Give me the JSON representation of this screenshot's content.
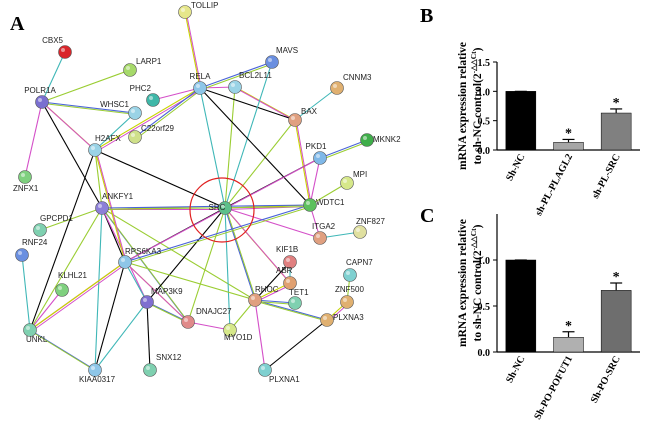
{
  "network": {
    "panel": "A",
    "nodes": [
      {
        "label": "CBX5",
        "color": "#d9262b"
      },
      {
        "label": "LARP1",
        "color": "#a6d96a"
      },
      {
        "label": "TOLLIP",
        "color": "#e6e68a"
      },
      {
        "label": "PHC2",
        "color": "#3fb7a8"
      },
      {
        "label": "WHSC1",
        "color": "#9ad3e6"
      },
      {
        "label": "POLR1A",
        "color": "#7a6fd0"
      },
      {
        "label": "C22orf29",
        "color": "#cfe08a"
      },
      {
        "label": "RELA",
        "color": "#8ec6e8"
      },
      {
        "label": "BCL2L11",
        "color": "#9ad3e6"
      },
      {
        "label": "MAVS",
        "color": "#6a8fe0"
      },
      {
        "label": "CNNM3",
        "color": "#e0b070"
      },
      {
        "label": "BAX",
        "color": "#e0a080"
      },
      {
        "label": "MKNK2",
        "color": "#3fae4a"
      },
      {
        "label": "H2AFX",
        "color": "#9ad3e6"
      },
      {
        "label": "ZNFX1",
        "color": "#7fd07f"
      },
      {
        "label": "PKD1",
        "color": "#7fb8e8"
      },
      {
        "label": "MPI",
        "color": "#d6e88a"
      },
      {
        "label": "ANKFY1",
        "color": "#8c7fd8"
      },
      {
        "label": "SRC",
        "color": "#5cc08a"
      },
      {
        "label": "WDTC1",
        "color": "#5cc05c"
      },
      {
        "label": "GPCPD1",
        "color": "#7fd0b0"
      },
      {
        "label": "ITGA2",
        "color": "#e0a080"
      },
      {
        "label": "ZNF827",
        "color": "#e0e0a0"
      },
      {
        "label": "RNF24",
        "color": "#6a8fe0"
      },
      {
        "label": "RPS6KA3",
        "color": "#8ec6e8"
      },
      {
        "label": "KIF1B",
        "color": "#e08080"
      },
      {
        "label": "ABR",
        "color": "#e0a070"
      },
      {
        "label": "CAPN7",
        "color": "#7fd0d0"
      },
      {
        "label": "KLHL21",
        "color": "#7fd07f"
      },
      {
        "label": "MAP3K9",
        "color": "#7f6fd0"
      },
      {
        "label": "RHOC",
        "color": "#e0a080"
      },
      {
        "label": "TET1",
        "color": "#7fd0b0"
      },
      {
        "label": "ZNF500",
        "color": "#e0b070"
      },
      {
        "label": "DNAJC27",
        "color": "#e08a8a"
      },
      {
        "label": "MYO1D",
        "color": "#d6e88a"
      },
      {
        "label": "PLXNA3",
        "color": "#e0b070"
      },
      {
        "label": "UNKL",
        "color": "#7fd0b0"
      },
      {
        "label": "KIAA0317",
        "color": "#8ec6e8"
      },
      {
        "label": "SNX12",
        "color": "#7fd0b0"
      },
      {
        "label": "PLXNA1",
        "color": "#7fd0d0"
      }
    ]
  },
  "chart_data": [
    {
      "type": "bar",
      "panel": "B",
      "y_label": [
        "mRNA expression relative",
        "to sh-NC control(2"
      ],
      "y_label_exponent": "-△△Ct",
      "y_label_end": ")",
      "categories": [
        "Sh-NC",
        "sh-PL-PLAGL2",
        "sh-PL-SRC"
      ],
      "values": [
        1.0,
        0.13,
        0.63
      ],
      "errors": [
        0,
        0.05,
        0.07
      ],
      "significance": [
        null,
        "*",
        "*"
      ],
      "colors": [
        "#000000",
        "#a6a6a6",
        "#808080"
      ],
      "ylim": [
        0,
        1.5
      ],
      "yticks": [
        {
          "value": 0,
          "label": "0.0"
        },
        {
          "value": 0.5,
          "label": "0.5"
        },
        {
          "value": 1,
          "label": "1.0"
        },
        {
          "value": 1.5,
          "label": "1.5"
        }
      ]
    },
    {
      "type": "bar",
      "panel": "C",
      "y_label": [
        "mRNA expression relative",
        "to sh-NC control(2"
      ],
      "y_label_exponent": "-△△Ct",
      "y_label_end": ")",
      "categories": [
        "Sh-NC",
        "Sh-PO-POFUT1",
        "Sh-PO-SRC"
      ],
      "values": [
        1.0,
        0.16,
        0.67
      ],
      "errors": [
        0,
        0.06,
        0.08
      ],
      "significance": [
        null,
        "*",
        "*"
      ],
      "colors": [
        "#000000",
        "#b0b0b0",
        "#6e6e6e"
      ],
      "ylim": [
        0,
        1.5
      ],
      "yticks": [
        {
          "value": 0,
          "label": "0.0"
        },
        {
          "value": 0.5,
          "label": "0.5"
        },
        {
          "value": 1,
          "label": "1.0"
        }
      ]
    }
  ]
}
